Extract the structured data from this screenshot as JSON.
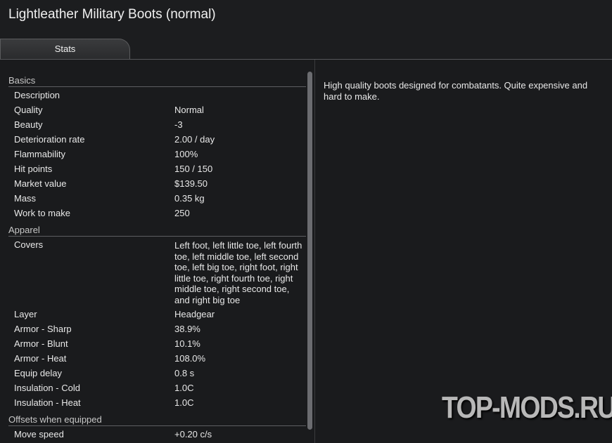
{
  "title": "Lightleather Military Boots (normal)",
  "tab": "Stats",
  "sections": [
    {
      "name": "Basics",
      "rows": [
        {
          "label": "Description",
          "value": null
        },
        {
          "label": "Quality",
          "value": "Normal"
        },
        {
          "label": "Beauty",
          "value": "-3"
        },
        {
          "label": "Deterioration rate",
          "value": "2.00 / day"
        },
        {
          "label": "Flammability",
          "value": "100%"
        },
        {
          "label": "Hit points",
          "value": "150 / 150"
        },
        {
          "label": "Market value",
          "value": "$139.50"
        },
        {
          "label": "Mass",
          "value": "0.35 kg"
        },
        {
          "label": "Work to make",
          "value": "250"
        }
      ]
    },
    {
      "name": "Apparel",
      "rows": [
        {
          "label": "Covers",
          "value": "Left foot, left little toe, left fourth toe, left middle toe, left second toe, left big toe, right foot, right little toe, right fourth toe, right middle toe, right second toe, and right big toe"
        },
        {
          "label": "Layer",
          "value": "Headgear"
        },
        {
          "label": "Armor - Sharp",
          "value": "38.9%"
        },
        {
          "label": "Armor - Blunt",
          "value": "10.1%"
        },
        {
          "label": "Armor - Heat",
          "value": "108.0%"
        },
        {
          "label": "Equip delay",
          "value": "0.8 s"
        },
        {
          "label": "Insulation - Cold",
          "value": "1.0C"
        },
        {
          "label": "Insulation - Heat",
          "value": "1.0C"
        }
      ]
    },
    {
      "name": "Offsets when equipped",
      "rows": [
        {
          "label": "Move speed",
          "value": "+0.20 c/s"
        }
      ]
    }
  ],
  "description": "High quality boots designed for combatants. Quite expensive and hard to make.",
  "watermark": "TOP-MODS.RU"
}
